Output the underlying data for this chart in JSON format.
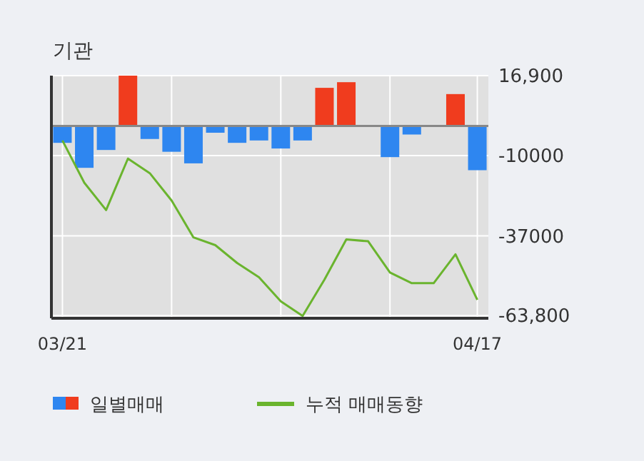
{
  "chart_data": {
    "type": "bar",
    "title": "기관",
    "categories": [
      "03/21",
      null,
      null,
      null,
      null,
      null,
      null,
      null,
      null,
      null,
      null,
      null,
      null,
      null,
      null,
      null,
      null,
      null,
      null,
      "04/17"
    ],
    "series": [
      {
        "name": "일별매매",
        "color": "#2e86f0",
        "colors": [
          "#2e86f0",
          "#2e86f0",
          "#2e86f0",
          "#f03c1e",
          "#2e86f0",
          "#2e86f0",
          "#2e86f0",
          "#2e86f0",
          "#2e86f0",
          "#2e86f0",
          "#2e86f0",
          "#2e86f0",
          "#f03c1e",
          "#f03c1e",
          "#2e86f0",
          "#2e86f0",
          "#2e86f0",
          "#2e86f0",
          "#f03c1e",
          "#2e86f0"
        ],
        "values": [
          -5700,
          -14100,
          -8100,
          16900,
          -4400,
          -8700,
          -12600,
          -2300,
          -5700,
          -4900,
          -7600,
          -4900,
          12800,
          14700,
          0,
          -10500,
          -2900,
          0,
          10700,
          -14900
        ]
      },
      {
        "name": "누적 매매동향",
        "type": "line",
        "color": "#6ab42e",
        "values": [
          -4900,
          -19100,
          -28300,
          -11000,
          -15900,
          -25100,
          -37500,
          -40100,
          -46100,
          -50900,
          -59000,
          -63900,
          -51700,
          -38200,
          -38800,
          -49300,
          -52900,
          -52900,
          -43200,
          -58500
        ]
      }
    ],
    "ylim": [
      -64700,
      16900
    ],
    "yticks": [
      {
        "value": 16900,
        "label": "16,900"
      },
      {
        "value": -10000,
        "label": "-10000"
      },
      {
        "value": -37000,
        "label": "-37000"
      },
      {
        "value": -63800,
        "label": "-63,800"
      }
    ],
    "ref_lines": [
      {
        "axis": "y",
        "value": 0,
        "color": "#888888"
      }
    ],
    "grid": true,
    "legend": "bottom"
  }
}
